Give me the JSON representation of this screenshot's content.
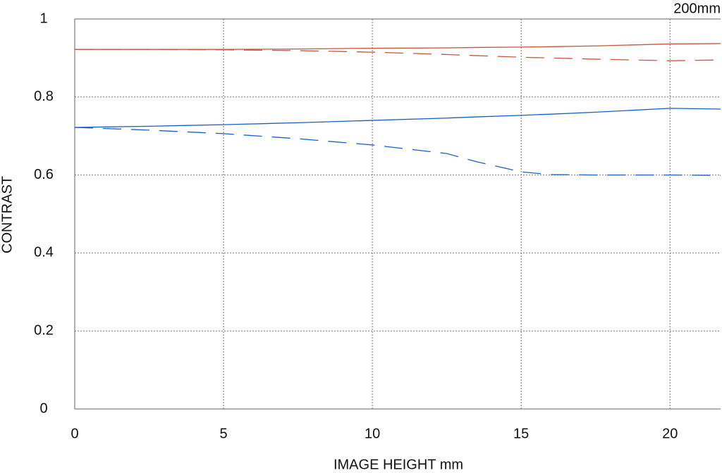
{
  "chart_data": {
    "type": "line",
    "title": "200mm",
    "xlabel": "IMAGE HEIGHT  mm",
    "ylabel": "CONTRAST",
    "x": [
      0,
      2.5,
      5,
      7.5,
      10,
      12.5,
      13.5,
      15,
      16,
      17.5,
      20,
      21.7
    ],
    "series": [
      {
        "color": "#c8553d",
        "dash": false,
        "values": [
          0.922,
          0.922,
          0.922,
          0.923,
          0.925,
          0.926,
          0.927,
          0.928,
          0.929,
          0.931,
          0.936,
          0.937
        ]
      },
      {
        "color": "#c8553d",
        "dash": true,
        "values": [
          0.922,
          0.922,
          0.921,
          0.919,
          0.915,
          0.909,
          0.906,
          0.902,
          0.9,
          0.897,
          0.893,
          0.895
        ]
      },
      {
        "color": "#1a5fc8",
        "dash": false,
        "values": [
          0.722,
          0.725,
          0.729,
          0.734,
          0.74,
          0.746,
          0.749,
          0.753,
          0.756,
          0.761,
          0.771,
          0.769
        ]
      },
      {
        "color": "#1a5fc8",
        "dash": true,
        "values": [
          0.722,
          0.715,
          0.706,
          0.693,
          0.677,
          0.655,
          0.634,
          0.608,
          0.601,
          0.6,
          0.6,
          0.599
        ]
      }
    ],
    "xlim": [
      0,
      21.7
    ],
    "xticks": [
      0,
      5,
      10,
      15,
      20
    ],
    "ylim": [
      0,
      1
    ],
    "yticks": [
      0,
      0.2,
      0.4,
      0.6,
      0.8,
      1
    ],
    "grid": true
  }
}
